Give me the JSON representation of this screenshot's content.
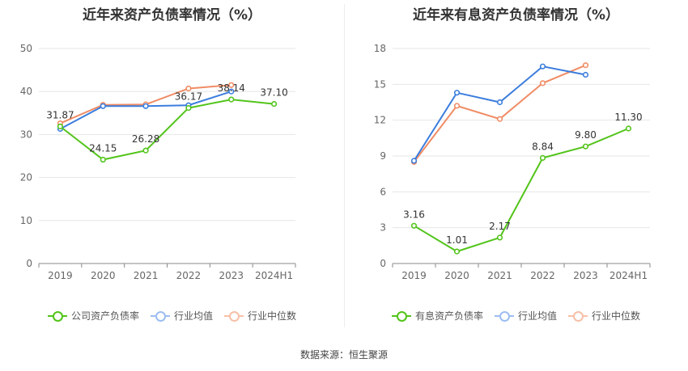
{
  "chart_data": [
    {
      "type": "line",
      "title": "近年来资产负债率情况（%）",
      "categories": [
        "2019",
        "2020",
        "2021",
        "2022",
        "2023",
        "2024H1"
      ],
      "ylim": [
        0,
        50
      ],
      "yticks": [
        0,
        10,
        20,
        30,
        40,
        50
      ],
      "grid": true,
      "legend_position": "bottom",
      "series": [
        {
          "name": "公司资产负债率",
          "color": "#52c41a",
          "values": [
            31.87,
            24.15,
            26.28,
            36.17,
            38.14,
            37.1
          ]
        },
        {
          "name": "行业均值",
          "color": "#3b7ddd",
          "values": [
            31.3,
            36.6,
            36.6,
            36.8,
            40.0,
            null
          ]
        },
        {
          "name": "行业中位数",
          "color": "#f08c65",
          "values": [
            32.6,
            36.9,
            37.0,
            40.7,
            41.5,
            null
          ]
        }
      ],
      "data_labels": [
        "31.87",
        "24.15",
        "26.28",
        "36.17",
        "38.14",
        "37.10"
      ]
    },
    {
      "type": "line",
      "title": "近年来有息资产负债率情况（%）",
      "categories": [
        "2019",
        "2020",
        "2021",
        "2022",
        "2023",
        "2024H1"
      ],
      "ylim": [
        0,
        18
      ],
      "yticks": [
        0,
        3,
        6,
        9,
        12,
        15,
        18
      ],
      "grid": true,
      "legend_position": "bottom",
      "series": [
        {
          "name": "有息资产负债率",
          "color": "#52c41a",
          "values": [
            3.16,
            1.01,
            2.17,
            8.84,
            9.8,
            11.3
          ]
        },
        {
          "name": "行业均值",
          "color": "#3b7ddd",
          "values": [
            8.6,
            14.3,
            13.5,
            16.5,
            15.8,
            null
          ]
        },
        {
          "name": "行业中位数",
          "color": "#f08c65",
          "values": [
            8.5,
            13.2,
            12.1,
            15.1,
            16.6,
            null
          ]
        }
      ],
      "data_labels": [
        "3.16",
        "1.01",
        "2.17",
        "8.84",
        "9.80",
        "11.30"
      ]
    }
  ],
  "source_text": "数据来源：恒生聚源"
}
